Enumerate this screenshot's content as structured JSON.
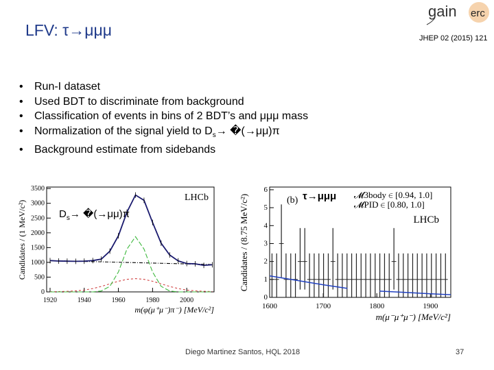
{
  "slide": {
    "title": "LFV: τ→μμμ",
    "reference": "JHEP 02 (2015) 121",
    "logo_text": "gain erc",
    "bullets": [
      "Run-I dataset",
      "Used BDT to discriminate from background",
      "Classification of events in bins of 2 BDT’s and μμμ mass",
      "Normalization of the signal yield to D",
      "Background estimate from sidebands"
    ],
    "bullet4_sub": "s",
    "bullet4_tail": "→ �(→μμ)π",
    "footer": "Diego Martinez Santos, HQL 2018",
    "page_number": "37"
  },
  "chart_data": [
    {
      "type": "line",
      "annotation_main": "D",
      "annotation_sub": "s",
      "annotation_tail": "→ �(→μμ)π",
      "label": "LHCb",
      "xlabel": "m(φ(μ⁺μ⁻)π⁻) [MeV/c²]",
      "ylabel": "Candidates / (1 MeV/c²)",
      "xlim": [
        1918,
        2016
      ],
      "ylim": [
        0,
        3550
      ],
      "xticks": [
        1920,
        1940,
        1960,
        1980,
        2000
      ],
      "yticks": [
        0,
        500,
        1000,
        1500,
        2000,
        2500,
        3000,
        3500
      ],
      "x": [
        1920,
        1925,
        1930,
        1935,
        1940,
        1945,
        1950,
        1955,
        1960,
        1965,
        1970,
        1975,
        1980,
        1985,
        1990,
        1995,
        2000,
        2005,
        2010,
        2015
      ],
      "series": [
        {
          "role": "data",
          "color": "#1a1a6e",
          "values": [
            1060,
            1045,
            1040,
            1035,
            1040,
            1060,
            1110,
            1380,
            1900,
            2700,
            3280,
            3100,
            2350,
            1650,
            1250,
            1050,
            960,
            950,
            900,
            920
          ]
        },
        {
          "role": "background",
          "color": "#000000",
          "values": [
            1060,
            1053,
            1046,
            1039,
            1032,
            1025,
            1018,
            1011,
            1004,
            997,
            990,
            983,
            976,
            969,
            962,
            955,
            948,
            941,
            934,
            927
          ]
        },
        {
          "role": "signal-narrow",
          "color": "#3cb83c",
          "values": [
            0,
            0,
            0,
            0,
            0,
            0,
            31,
            188,
            675,
            1449,
            1870,
            1449,
            675,
            188,
            31,
            0,
            0,
            0,
            0,
            0
          ]
        },
        {
          "role": "signal-wide",
          "color": "#d04040",
          "values": [
            5,
            10,
            20,
            35,
            61,
            113,
            185,
            273,
            360,
            425,
            450,
            425,
            360,
            273,
            185,
            113,
            61,
            35,
            20,
            10
          ]
        }
      ]
    },
    {
      "type": "scatter",
      "panel": "(b)",
      "annotation": "τ→μμμ",
      "label": "LHCb",
      "legend_lines": [
        "𝓜3body ∈ [0.94, 1.0]",
        "𝓜PID ∈ [0.80, 1.0]"
      ],
      "xlabel": "m(μ⁻μ⁺μ⁻) [MeV/c²]",
      "ylabel": "Candidates / (8.75 MeV/c²)",
      "xlim": [
        1600,
        1938
      ],
      "ylim": [
        0,
        6.15
      ],
      "xticks": [
        1600,
        1700,
        1800,
        1900
      ],
      "yticks": [
        0,
        1,
        2,
        3,
        4,
        5,
        6
      ],
      "bin_width": 8.75,
      "x": [
        1604.4,
        1613.1,
        1621.9,
        1630.6,
        1639.4,
        1648.1,
        1656.9,
        1665.6,
        1674.4,
        1683.1,
        1691.9,
        1700.6,
        1709.4,
        1718.1,
        1726.9,
        1735.6,
        1744.4,
        1753.1,
        1761.9,
        1770.6,
        1779.4,
        1788.1,
        1796.9,
        1805.6,
        1814.4,
        1823.1,
        1831.9,
        1840.6,
        1849.4,
        1858.1,
        1866.9,
        1875.6,
        1884.4,
        1893.1,
        1901.9,
        1910.6,
        1919.4,
        1928.1
      ],
      "counts": [
        1,
        1,
        3,
        1,
        1,
        1,
        2,
        2,
        1,
        1,
        1,
        1,
        1,
        2,
        1,
        1,
        1,
        1,
        1,
        1,
        1,
        1,
        1,
        1,
        1,
        1,
        2,
        1,
        1,
        1,
        1,
        1,
        1,
        1,
        1,
        1,
        1,
        1
      ],
      "fit": {
        "color": "#2040c0",
        "segments": [
          {
            "x": [
              1600,
              1650,
              1700,
              1745
            ],
            "y": [
              1.2,
              0.95,
              0.7,
              0.5
            ]
          },
          {
            "x": [
              1805,
              1850,
              1900,
              1938
            ],
            "y": [
              0.35,
              0.28,
              0.2,
              0.15
            ]
          }
        ]
      }
    }
  ]
}
